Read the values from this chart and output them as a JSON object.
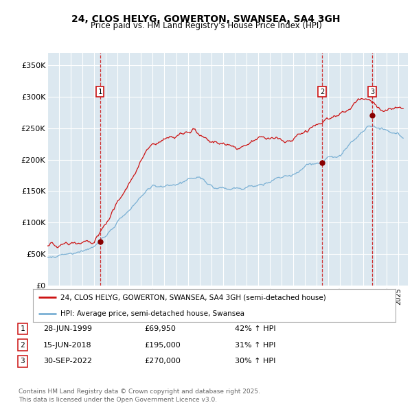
{
  "title": "24, CLOS HELYG, GOWERTON, SWANSEA, SA4 3GH",
  "subtitle": "Price paid vs. HM Land Registry's House Price Index (HPI)",
  "bg_color": "#dce8f0",
  "ylim": [
    0,
    370000
  ],
  "xlim_start": 1995.0,
  "xlim_end": 2025.8,
  "yticks": [
    0,
    50000,
    100000,
    150000,
    200000,
    250000,
    300000,
    350000
  ],
  "ytick_labels": [
    "£0",
    "£50K",
    "£100K",
    "£150K",
    "£200K",
    "£250K",
    "£300K",
    "£350K"
  ],
  "legend_label_red": "24, CLOS HELYG, GOWERTON, SWANSEA, SA4 3GH (semi-detached house)",
  "legend_label_blue": "HPI: Average price, semi-detached house, Swansea",
  "sale1_date": 1999.49,
  "sale1_price": 69950,
  "sale1_label": "1",
  "sale2_date": 2018.46,
  "sale2_price": 195000,
  "sale2_label": "2",
  "sale3_date": 2022.75,
  "sale3_price": 270000,
  "sale3_label": "3",
  "footer": "Contains HM Land Registry data © Crown copyright and database right 2025.\nThis data is licensed under the Open Government Licence v3.0.",
  "table_rows": [
    [
      "1",
      "28-JUN-1999",
      "£69,950",
      "42% ↑ HPI"
    ],
    [
      "2",
      "15-JUN-2018",
      "£195,000",
      "31% ↑ HPI"
    ],
    [
      "3",
      "30-SEP-2022",
      "£270,000",
      "30% ↑ HPI"
    ]
  ]
}
